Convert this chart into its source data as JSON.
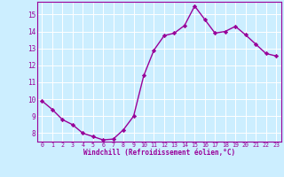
{
  "x": [
    0,
    1,
    2,
    3,
    4,
    5,
    6,
    7,
    8,
    9,
    10,
    11,
    12,
    13,
    14,
    15,
    16,
    17,
    18,
    19,
    20,
    21,
    22,
    23
  ],
  "y": [
    9.9,
    9.4,
    8.8,
    8.5,
    8.0,
    7.8,
    7.6,
    7.65,
    8.2,
    9.0,
    11.4,
    12.9,
    13.75,
    13.9,
    14.35,
    15.5,
    14.7,
    13.9,
    14.0,
    14.3,
    13.8,
    13.25,
    12.7,
    12.55
  ],
  "line_color": "#990099",
  "marker": "D",
  "marker_size": 2.2,
  "bg_color": "#cceeff",
  "grid_color": "#aadddd",
  "xlabel": "Windchill (Refroidissement éolien,°C)",
  "xlabel_color": "#990099",
  "tick_color": "#990099",
  "ylim": [
    7.5,
    15.75
  ],
  "xlim": [
    -0.5,
    23.5
  ],
  "yticks": [
    8,
    9,
    10,
    11,
    12,
    13,
    14,
    15
  ],
  "xticks": [
    0,
    1,
    2,
    3,
    4,
    5,
    6,
    7,
    8,
    9,
    10,
    11,
    12,
    13,
    14,
    15,
    16,
    17,
    18,
    19,
    20,
    21,
    22,
    23
  ],
  "spine_color": "#990099",
  "font_family": "monospace",
  "linewidth": 1.0
}
